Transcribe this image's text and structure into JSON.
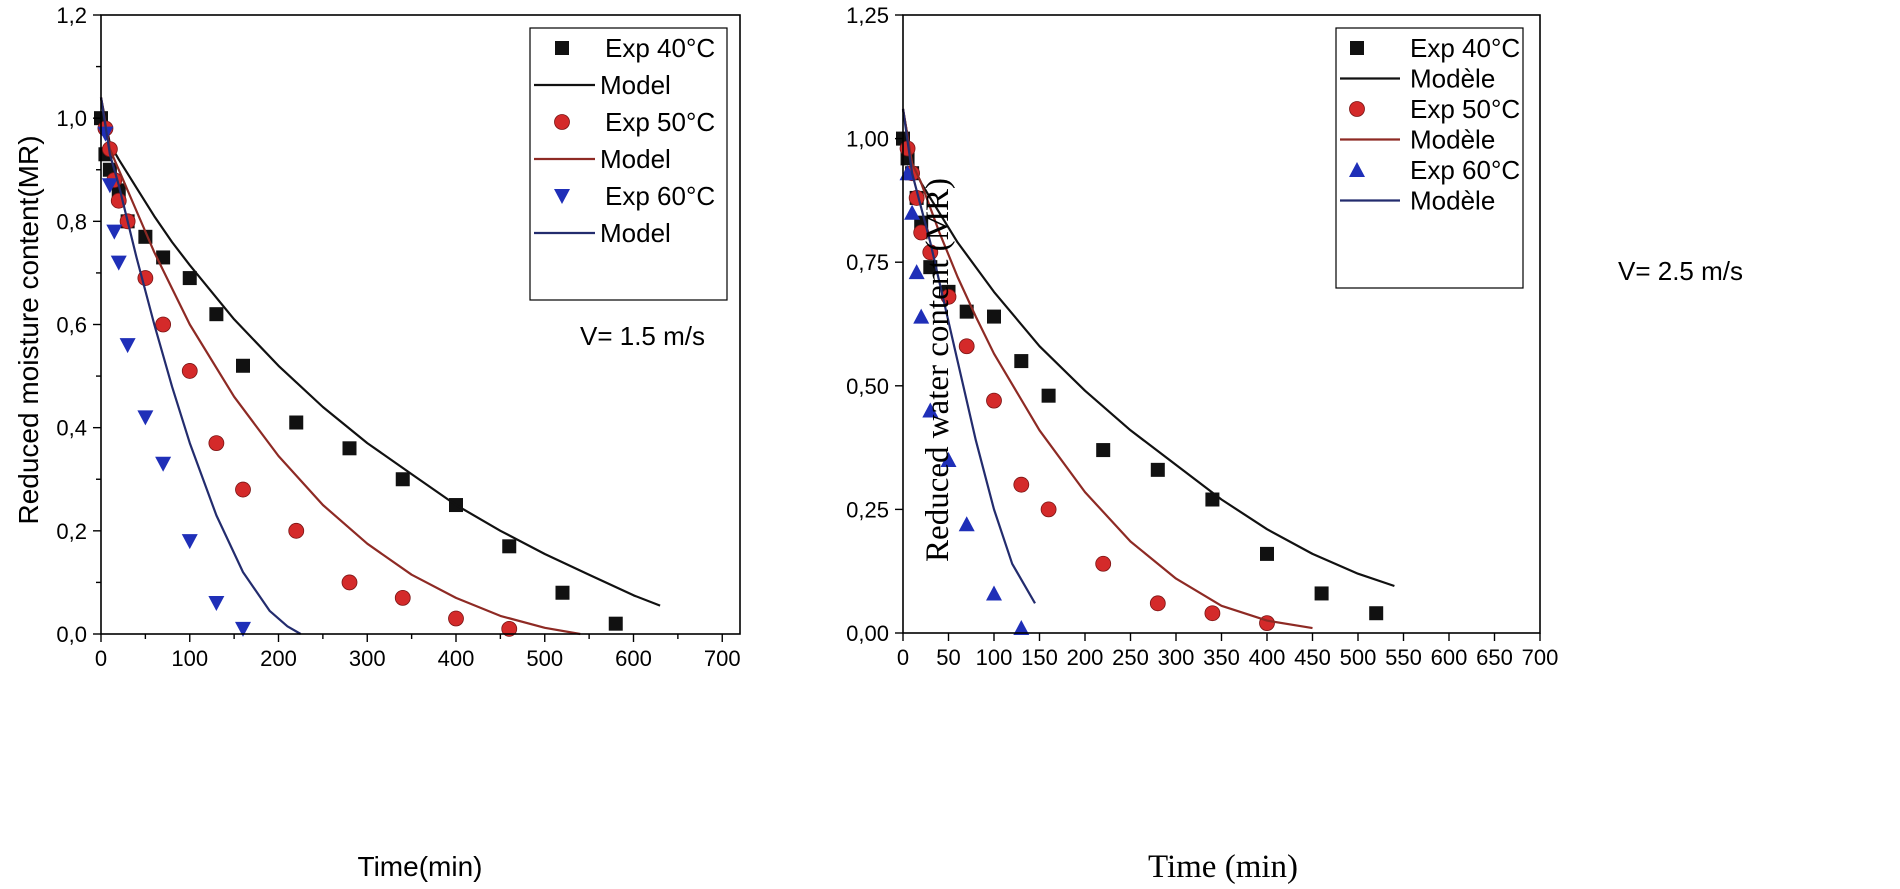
{
  "colors": {
    "c40": "#111111",
    "c50_fill": "#d42a2a",
    "c50_line": "#8e2a24",
    "c60_fill": "#1f2fb8",
    "c60_line": "#232c6e"
  },
  "chart_data": [
    {
      "type": "scatter",
      "title": "",
      "xlabel": "Time(min)",
      "ylabel": "Reduced moisture content(MR)",
      "xlim": [
        0,
        720
      ],
      "ylim": [
        0,
        1.2
      ],
      "xticks": [
        0,
        100,
        200,
        300,
        400,
        500,
        600,
        700
      ],
      "yticks": [
        0,
        0.2,
        0.4,
        0.6,
        0.8,
        1.0,
        1.2
      ],
      "xtick_labels": [
        "0",
        "100",
        "200",
        "300",
        "400",
        "500",
        "600",
        "700"
      ],
      "ytick_labels": [
        "0,0",
        "0,2",
        "0,4",
        "0,6",
        "0,8",
        "1,0",
        "1,2"
      ],
      "legend_position": "top-right",
      "annotation": "V= 1.5 m/s",
      "series": [
        {
          "name": "Exp 40°C",
          "kind": "points",
          "marker": "square",
          "color": "#111111",
          "x": [
            0,
            5,
            10,
            20,
            30,
            50,
            70,
            100,
            130,
            160,
            220,
            280,
            340,
            400,
            460,
            520,
            580
          ],
          "y": [
            1.0,
            0.93,
            0.9,
            0.86,
            0.8,
            0.77,
            0.73,
            0.69,
            0.62,
            0.52,
            0.41,
            0.36,
            0.3,
            0.25,
            0.17,
            0.08,
            0.02
          ]
        },
        {
          "name": "Model",
          "kind": "line",
          "color": "#111111",
          "x": [
            0,
            10,
            20,
            40,
            60,
            80,
            100,
            150,
            200,
            250,
            300,
            350,
            400,
            450,
            500,
            550,
            600,
            630
          ],
          "y": [
            1.04,
            0.95,
            0.92,
            0.865,
            0.81,
            0.76,
            0.715,
            0.61,
            0.52,
            0.44,
            0.37,
            0.31,
            0.25,
            0.2,
            0.155,
            0.115,
            0.075,
            0.055
          ]
        },
        {
          "name": "Exp 50°C",
          "kind": "points",
          "marker": "circle",
          "color": "#d42a2a",
          "x": [
            5,
            10,
            15,
            20,
            30,
            50,
            70,
            100,
            130,
            160,
            220,
            280,
            340,
            400,
            460
          ],
          "y": [
            0.98,
            0.94,
            0.88,
            0.84,
            0.8,
            0.69,
            0.6,
            0.51,
            0.37,
            0.28,
            0.2,
            0.1,
            0.07,
            0.03,
            0.01
          ]
        },
        {
          "name": "Model",
          "kind": "line",
          "color": "#8e2a24",
          "x": [
            0,
            10,
            20,
            40,
            60,
            80,
            100,
            150,
            200,
            250,
            300,
            350,
            400,
            450,
            500,
            540
          ],
          "y": [
            1.04,
            0.94,
            0.9,
            0.82,
            0.74,
            0.67,
            0.6,
            0.46,
            0.345,
            0.25,
            0.175,
            0.115,
            0.07,
            0.035,
            0.012,
            0.0
          ]
        },
        {
          "name": "Exp 60°C",
          "kind": "points",
          "marker": "triangle-down",
          "color": "#1f2fb8",
          "x": [
            5,
            10,
            15,
            20,
            30,
            50,
            70,
            100,
            130,
            160
          ],
          "y": [
            0.97,
            0.87,
            0.78,
            0.72,
            0.56,
            0.42,
            0.33,
            0.18,
            0.06,
            0.01
          ]
        },
        {
          "name": "Model",
          "kind": "line",
          "color": "#232c6e",
          "x": [
            0,
            10,
            20,
            40,
            60,
            80,
            100,
            130,
            160,
            190,
            210,
            225
          ],
          "y": [
            1.04,
            0.93,
            0.87,
            0.73,
            0.6,
            0.48,
            0.37,
            0.23,
            0.12,
            0.045,
            0.015,
            0.0
          ]
        }
      ]
    },
    {
      "type": "scatter",
      "title": "",
      "xlabel": "Time (min)",
      "ylabel": "Reduced water content (MR)",
      "xlim": [
        0,
        700
      ],
      "ylim": [
        0,
        1.25
      ],
      "xticks": [
        0,
        50,
        100,
        150,
        200,
        250,
        300,
        350,
        400,
        450,
        500,
        550,
        600,
        650,
        700
      ],
      "yticks": [
        0,
        0.25,
        0.5,
        0.75,
        1.0,
        1.25
      ],
      "xtick_labels": [
        "0",
        "50",
        "100",
        "150",
        "200",
        "250",
        "300",
        "350",
        "400",
        "450",
        "500",
        "550",
        "600",
        "650",
        "700"
      ],
      "ytick_labels": [
        "0,00",
        "0,25",
        "0,50",
        "0,75",
        "1,00",
        "1,25"
      ],
      "legend_position": "top-right",
      "annotation": "V= 2.5 m/s",
      "series": [
        {
          "name": "Exp 40°C",
          "kind": "points",
          "marker": "square",
          "color": "#111111",
          "x": [
            0,
            5,
            10,
            15,
            20,
            30,
            50,
            70,
            100,
            130,
            160,
            220,
            280,
            340,
            400,
            460,
            520
          ],
          "y": [
            1.0,
            0.96,
            0.93,
            0.88,
            0.83,
            0.74,
            0.69,
            0.65,
            0.64,
            0.55,
            0.48,
            0.37,
            0.33,
            0.27,
            0.16,
            0.08,
            0.04
          ]
        },
        {
          "name": "Modèle",
          "kind": "line",
          "color": "#111111",
          "x": [
            0,
            10,
            20,
            40,
            60,
            80,
            100,
            150,
            200,
            250,
            300,
            350,
            400,
            450,
            500,
            540
          ],
          "y": [
            1.06,
            0.95,
            0.91,
            0.85,
            0.79,
            0.74,
            0.69,
            0.58,
            0.49,
            0.41,
            0.34,
            0.27,
            0.21,
            0.16,
            0.12,
            0.095
          ]
        },
        {
          "name": "Exp 50°C",
          "kind": "points",
          "marker": "circle",
          "color": "#d42a2a",
          "x": [
            5,
            10,
            15,
            20,
            30,
            50,
            70,
            100,
            130,
            160,
            220,
            280,
            340,
            400
          ],
          "y": [
            0.98,
            0.93,
            0.88,
            0.81,
            0.77,
            0.68,
            0.58,
            0.47,
            0.3,
            0.25,
            0.14,
            0.06,
            0.04,
            0.02
          ]
        },
        {
          "name": "Modèle",
          "kind": "line",
          "color": "#8e2a24",
          "x": [
            0,
            10,
            20,
            40,
            60,
            80,
            100,
            150,
            200,
            250,
            300,
            350,
            400,
            450
          ],
          "y": [
            1.06,
            0.95,
            0.91,
            0.81,
            0.72,
            0.64,
            0.565,
            0.41,
            0.285,
            0.185,
            0.11,
            0.055,
            0.025,
            0.01
          ]
        },
        {
          "name": "Exp 60°C",
          "kind": "points",
          "marker": "triangle-up",
          "color": "#1f2fb8",
          "x": [
            5,
            10,
            15,
            20,
            30,
            50,
            70,
            100,
            130
          ],
          "y": [
            0.93,
            0.85,
            0.73,
            0.64,
            0.45,
            0.35,
            0.22,
            0.08,
            0.01
          ]
        },
        {
          "name": "Modèle",
          "kind": "line",
          "color": "#232c6e",
          "x": [
            0,
            10,
            20,
            30,
            40,
            60,
            80,
            100,
            120,
            145
          ],
          "y": [
            1.06,
            0.93,
            0.86,
            0.79,
            0.71,
            0.55,
            0.39,
            0.25,
            0.14,
            0.06
          ]
        }
      ]
    }
  ]
}
